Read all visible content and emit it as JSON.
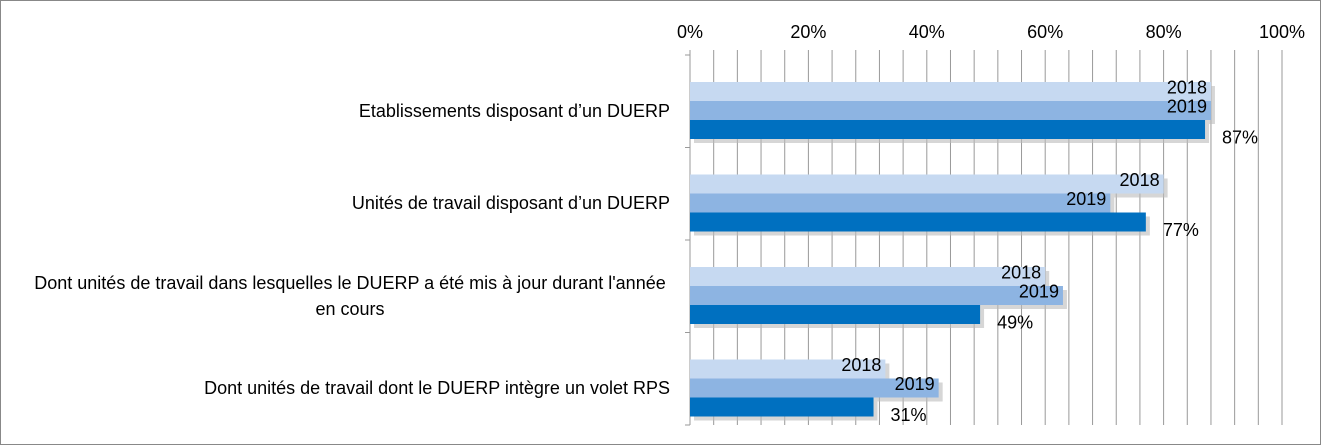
{
  "chart_data": {
    "type": "hbar",
    "categories": [
      "Etablissements disposant d’un DUERP",
      "Unités de travail disposant d’un DUERP",
      "Dont unités de travail dans lesquelles le DUERP a été mis à jour durant l'année en cours",
      "Dont unités de travail dont le DUERP intègre un volet RPS"
    ],
    "series": [
      {
        "name": "2018",
        "color": "#c6d9f1",
        "values": [
          88,
          80,
          60,
          33
        ]
      },
      {
        "name": "2019",
        "color": "#8db4e2",
        "values": [
          88,
          71,
          63,
          42
        ]
      },
      {
        "color": "#0070c0",
        "values": [
          87,
          77,
          49,
          31
        ],
        "value_labels": [
          "87%",
          "77%",
          "49%",
          "31%"
        ]
      }
    ],
    "xlim": [
      0,
      100
    ],
    "xticks": [
      {
        "value": 0,
        "label": "0%"
      },
      {
        "value": 20,
        "label": "20%"
      },
      {
        "value": 40,
        "label": "40%"
      },
      {
        "value": 60,
        "label": "60%"
      },
      {
        "value": 80,
        "label": "80%"
      },
      {
        "value": 100,
        "label": "100%"
      }
    ],
    "xminorticks": [
      4,
      8,
      12,
      16,
      24,
      28,
      32,
      36,
      44,
      48,
      52,
      56,
      64,
      68,
      72,
      76,
      84,
      88,
      92,
      96
    ],
    "grid": true
  }
}
